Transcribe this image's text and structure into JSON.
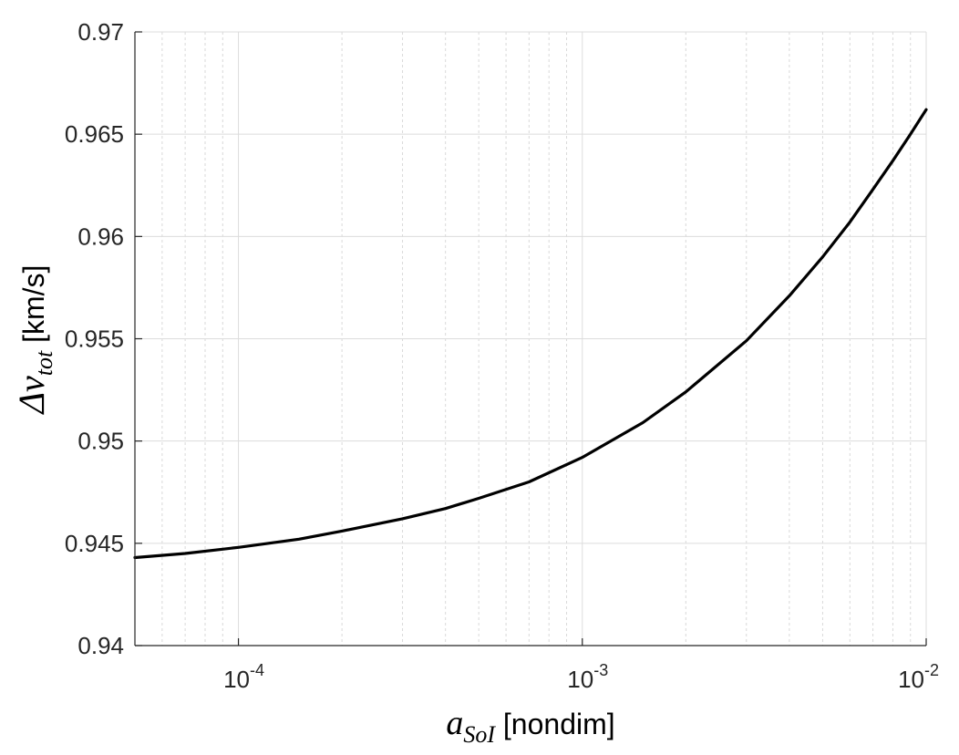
{
  "chart_data": {
    "type": "line",
    "title": "",
    "xscale": "log",
    "xlim": [
      5e-05,
      0.01
    ],
    "ylim": [
      0.94,
      0.97
    ],
    "grid": {
      "major": true,
      "minor_x": true
    },
    "xlabel": {
      "symbol": "a",
      "subscript": "SoI",
      "unit": " [nondim]"
    },
    "ylabel": {
      "symbol": "Δv",
      "subscript": "tot",
      "unit": " [km/s]"
    },
    "x_ticks": [
      {
        "value": 0.0001,
        "base": "10",
        "exponent": "-4"
      },
      {
        "value": 0.001,
        "base": "10",
        "exponent": "-3"
      },
      {
        "value": 0.01,
        "base": "10",
        "exponent": "-2"
      }
    ],
    "y_ticks": [
      {
        "value": 0.94,
        "label": "0.94"
      },
      {
        "value": 0.945,
        "label": "0.945"
      },
      {
        "value": 0.95,
        "label": "0.95"
      },
      {
        "value": 0.955,
        "label": "0.955"
      },
      {
        "value": 0.96,
        "label": "0.96"
      },
      {
        "value": 0.965,
        "label": "0.965"
      },
      {
        "value": 0.97,
        "label": "0.97"
      }
    ],
    "series": [
      {
        "color": "#000000",
        "x": [
          5e-05,
          7e-05,
          0.0001,
          0.00015,
          0.0002,
          0.0003,
          0.0004,
          0.0005,
          0.0007,
          0.001,
          0.0015,
          0.002,
          0.003,
          0.004,
          0.005,
          0.006,
          0.007,
          0.008,
          0.009,
          0.01
        ],
        "y": [
          0.9443,
          0.9445,
          0.9448,
          0.9452,
          0.9456,
          0.9462,
          0.9467,
          0.9472,
          0.948,
          0.9492,
          0.9509,
          0.9524,
          0.9549,
          0.9571,
          0.959,
          0.9607,
          0.9623,
          0.9637,
          0.965,
          0.9662
        ]
      }
    ]
  }
}
